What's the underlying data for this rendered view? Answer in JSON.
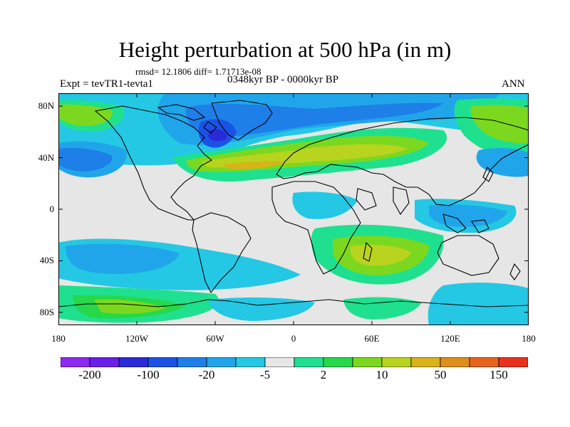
{
  "title": "Height perturbation at 500 hPa (in m)",
  "stats": "rmsd= 12.1806 diff= 1.71713e-08",
  "experiment": "Expt = tevTR1-tevta1",
  "period": "0348kyr BP - 0000kyr BP",
  "season": "ANN",
  "lat_ticks": [
    "80N",
    "40N",
    "0",
    "40S",
    "80S"
  ],
  "lon_ticks": [
    "180",
    "120W",
    "60W",
    "0",
    "60E",
    "120E",
    "180"
  ],
  "colorbar": {
    "labels": [
      "-200",
      "-100",
      "-20",
      "-5",
      "2",
      "10",
      "50",
      "150"
    ],
    "colors": [
      "#8d2bee",
      "#6a1ee8",
      "#2a2ad8",
      "#1a52e6",
      "#1e7fe8",
      "#20a5ea",
      "#24c8e4",
      "#e6e6e6",
      "#1fe08e",
      "#26d84a",
      "#7cd81e",
      "#b8d41e",
      "#d8b41a",
      "#e08e1a",
      "#e8641e",
      "#e8321e"
    ]
  },
  "field_colors": {
    "neutral": "#e6e6e6",
    "pos1": "#1fe08e",
    "pos2": "#26d84a",
    "pos3": "#7cd81e",
    "pos4": "#b8d41e",
    "pos5": "#d8b41a",
    "neg1": "#24c8e4",
    "neg2": "#20a5ea",
    "neg3": "#1e7fe8",
    "neg4": "#1a52e6",
    "neg5": "#2a2ad8"
  }
}
